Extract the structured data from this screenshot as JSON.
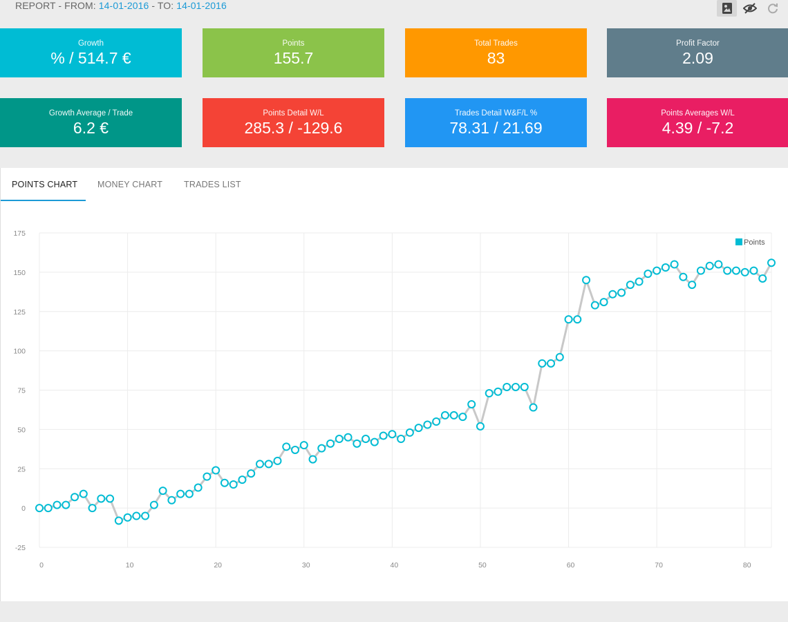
{
  "header": {
    "prefix": "REPORT - FROM: ",
    "from_date": "14-01-2016",
    "mid": " - TO: ",
    "to_date": "14-01-2016"
  },
  "toolbar": {
    "icons": [
      "picture-icon",
      "hide-icon",
      "refresh-icon"
    ]
  },
  "cards": [
    {
      "title": "Growth",
      "value": "% / 514.7 €",
      "color": "#00bcd4"
    },
    {
      "title": "Points",
      "value": "155.7",
      "color": "#8bc34a"
    },
    {
      "title": "Total Trades",
      "value": "83",
      "color": "#ff9800"
    },
    {
      "title": "Profit Factor",
      "value": "2.09",
      "color": "#607d8b"
    },
    {
      "title": "Growth Average / Trade",
      "value": "6.2 €",
      "color": "#009688"
    },
    {
      "title": "Points Detail W/L",
      "value": "285.3 / -129.6",
      "color": "#f44336"
    },
    {
      "title": "Trades Detail W&F/L %",
      "value": "78.31 / 21.69",
      "color": "#2196f3"
    },
    {
      "title": "Points Averages W/L",
      "value": "4.39 / -7.2",
      "color": "#e91e63"
    }
  ],
  "tabs": [
    {
      "label": "POINTS CHART",
      "active": true
    },
    {
      "label": "MONEY CHART",
      "active": false
    },
    {
      "label": "TRADES LIST",
      "active": false
    }
  ],
  "chart_data": {
    "type": "line",
    "title": "",
    "xlabel": "",
    "ylabel": "",
    "xlim": [
      0,
      83
    ],
    "ylim": [
      -25,
      175
    ],
    "x_ticks": [
      0,
      10,
      20,
      30,
      40,
      50,
      60,
      70,
      80
    ],
    "y_ticks": [
      -25,
      0,
      25,
      50,
      75,
      100,
      125,
      150,
      175
    ],
    "grid": true,
    "legend": "top-right",
    "series": [
      {
        "name": "Points",
        "color": "#00bcd4",
        "x": [
          0,
          1,
          2,
          3,
          4,
          5,
          6,
          7,
          8,
          9,
          10,
          11,
          12,
          13,
          14,
          15,
          16,
          17,
          18,
          19,
          20,
          21,
          22,
          23,
          24,
          25,
          26,
          27,
          28,
          29,
          30,
          31,
          32,
          33,
          34,
          35,
          36,
          37,
          38,
          39,
          40,
          41,
          42,
          43,
          44,
          45,
          46,
          47,
          48,
          49,
          50,
          51,
          52,
          53,
          54,
          55,
          56,
          57,
          58,
          59,
          60,
          61,
          62,
          63,
          64,
          65,
          66,
          67,
          68,
          69,
          70,
          71,
          72,
          73,
          74,
          75,
          76,
          77,
          78,
          79,
          80,
          81,
          82,
          83
        ],
        "values": [
          0,
          0,
          2,
          2,
          7,
          9,
          0,
          6,
          6,
          -8,
          -6,
          -5,
          -5,
          2,
          11,
          5,
          9,
          9,
          13,
          20,
          24,
          16,
          15,
          18,
          22,
          28,
          28,
          30,
          39,
          37,
          40,
          31,
          38,
          41,
          44,
          45,
          41,
          44,
          42,
          46,
          47,
          44,
          48,
          51,
          53,
          55,
          59,
          59,
          58,
          66,
          52,
          73,
          74,
          77,
          77,
          77,
          64,
          92,
          92,
          96,
          120,
          120,
          145,
          129,
          131,
          136,
          137,
          142,
          144,
          149,
          151,
          153,
          155,
          147,
          142,
          151,
          154,
          155,
          151,
          151,
          150,
          151,
          146,
          156
        ]
      }
    ]
  }
}
